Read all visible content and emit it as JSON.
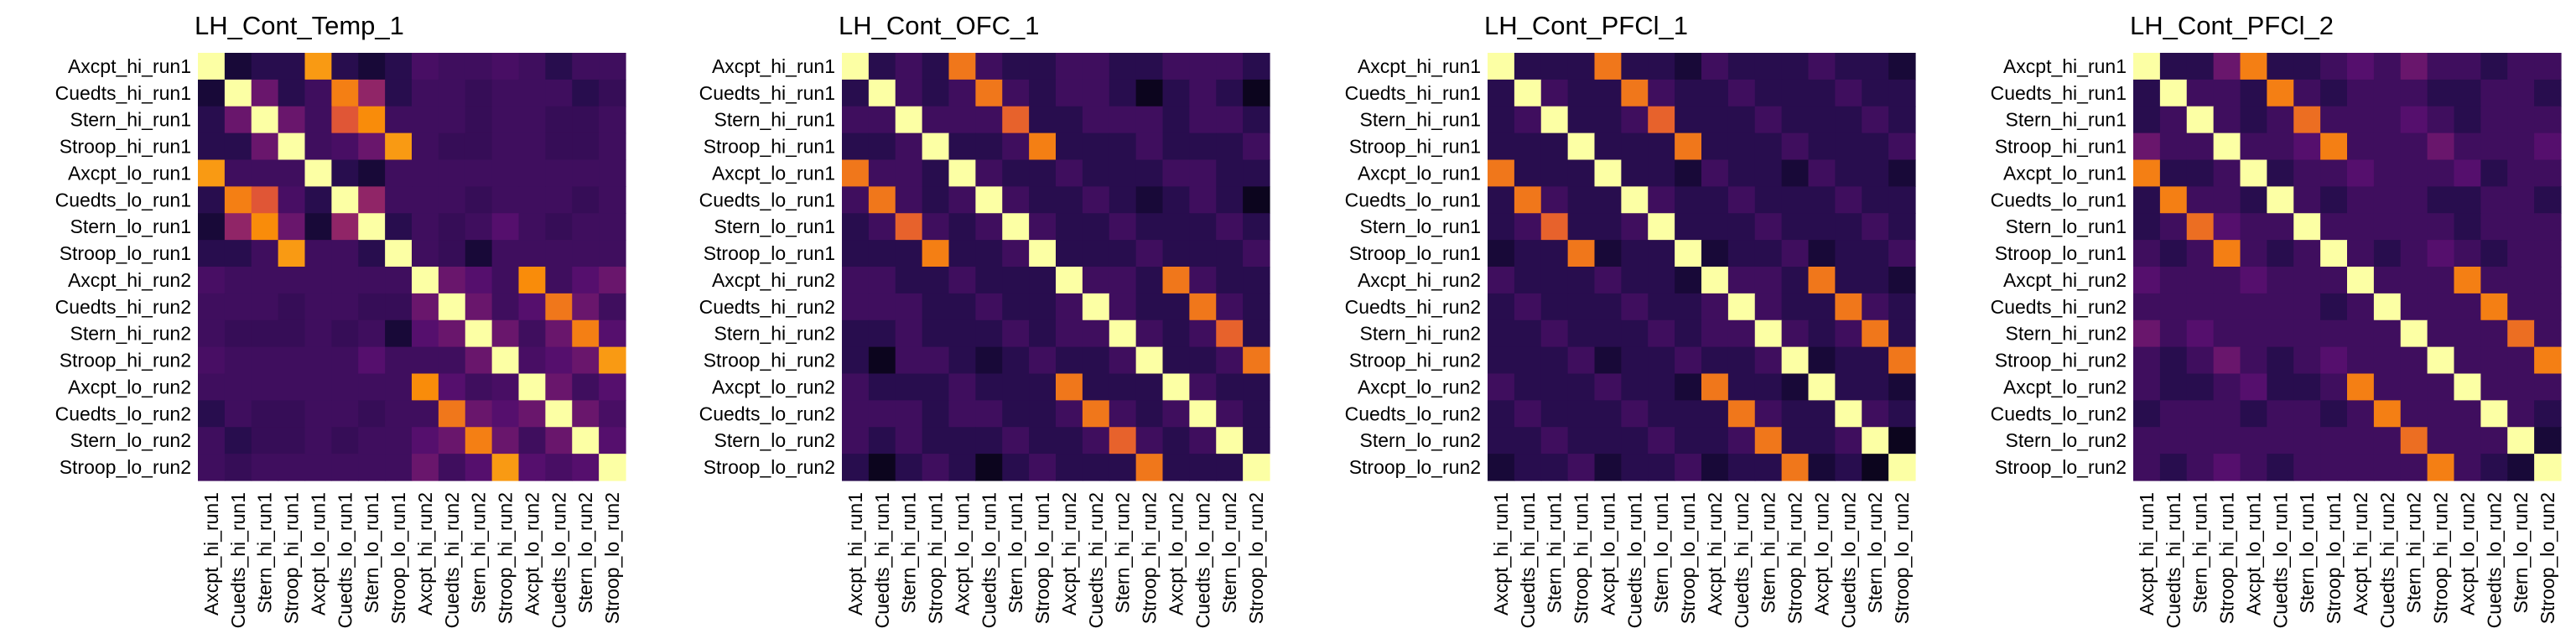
{
  "chart_data": [
    {
      "type": "heatmap",
      "title": "LH_Cont_Temp_1",
      "labels": [
        "Axcpt_hi_run1",
        "Cuedts_hi_run1",
        "Stern_hi_run1",
        "Stroop_hi_run1",
        "Axcpt_lo_run1",
        "Cuedts_lo_run1",
        "Stern_lo_run1",
        "Stroop_lo_run1",
        "Axcpt_hi_run2",
        "Cuedts_hi_run2",
        "Stern_hi_run2",
        "Stroop_hi_run2",
        "Axcpt_lo_run2",
        "Cuedts_lo_run2",
        "Stern_lo_run2",
        "Stroop_lo_run2"
      ],
      "value_range": [
        0,
        1
      ],
      "colormap": "inferno",
      "values": [
        [
          1.0,
          0.1,
          0.15,
          0.15,
          0.78,
          0.15,
          0.1,
          0.15,
          0.22,
          0.2,
          0.2,
          0.22,
          0.2,
          0.15,
          0.2,
          0.2
        ],
        [
          0.1,
          1.0,
          0.3,
          0.15,
          0.2,
          0.72,
          0.4,
          0.15,
          0.2,
          0.2,
          0.18,
          0.2,
          0.2,
          0.2,
          0.15,
          0.18
        ],
        [
          0.15,
          0.3,
          1.0,
          0.3,
          0.2,
          0.62,
          0.75,
          0.2,
          0.2,
          0.2,
          0.18,
          0.2,
          0.2,
          0.18,
          0.18,
          0.2
        ],
        [
          0.15,
          0.15,
          0.3,
          1.0,
          0.2,
          0.22,
          0.3,
          0.78,
          0.2,
          0.18,
          0.18,
          0.2,
          0.2,
          0.18,
          0.18,
          0.2
        ],
        [
          0.78,
          0.2,
          0.2,
          0.2,
          1.0,
          0.15,
          0.1,
          0.2,
          0.2,
          0.2,
          0.2,
          0.2,
          0.2,
          0.2,
          0.2,
          0.2
        ],
        [
          0.15,
          0.72,
          0.62,
          0.22,
          0.15,
          1.0,
          0.4,
          0.2,
          0.2,
          0.2,
          0.18,
          0.2,
          0.2,
          0.2,
          0.18,
          0.2
        ],
        [
          0.1,
          0.4,
          0.75,
          0.3,
          0.1,
          0.4,
          1.0,
          0.15,
          0.2,
          0.18,
          0.2,
          0.25,
          0.2,
          0.18,
          0.2,
          0.2
        ],
        [
          0.15,
          0.15,
          0.2,
          0.78,
          0.2,
          0.2,
          0.15,
          1.0,
          0.2,
          0.18,
          0.1,
          0.2,
          0.2,
          0.2,
          0.2,
          0.2
        ],
        [
          0.22,
          0.2,
          0.2,
          0.2,
          0.2,
          0.2,
          0.2,
          0.2,
          1.0,
          0.3,
          0.25,
          0.2,
          0.75,
          0.2,
          0.25,
          0.3
        ],
        [
          0.2,
          0.2,
          0.2,
          0.18,
          0.2,
          0.2,
          0.18,
          0.18,
          0.3,
          1.0,
          0.3,
          0.2,
          0.25,
          0.7,
          0.3,
          0.2
        ],
        [
          0.2,
          0.18,
          0.18,
          0.18,
          0.2,
          0.18,
          0.2,
          0.1,
          0.25,
          0.3,
          1.0,
          0.3,
          0.2,
          0.3,
          0.72,
          0.25
        ],
        [
          0.22,
          0.2,
          0.2,
          0.2,
          0.2,
          0.2,
          0.25,
          0.2,
          0.2,
          0.2,
          0.3,
          1.0,
          0.22,
          0.25,
          0.3,
          0.78
        ],
        [
          0.2,
          0.2,
          0.2,
          0.2,
          0.2,
          0.2,
          0.2,
          0.2,
          0.75,
          0.25,
          0.2,
          0.22,
          1.0,
          0.3,
          0.2,
          0.25
        ],
        [
          0.15,
          0.2,
          0.18,
          0.18,
          0.2,
          0.2,
          0.18,
          0.2,
          0.2,
          0.7,
          0.3,
          0.25,
          0.3,
          1.0,
          0.3,
          0.22
        ],
        [
          0.2,
          0.15,
          0.18,
          0.18,
          0.2,
          0.18,
          0.2,
          0.2,
          0.25,
          0.3,
          0.72,
          0.3,
          0.2,
          0.3,
          1.0,
          0.25
        ],
        [
          0.2,
          0.18,
          0.2,
          0.2,
          0.2,
          0.2,
          0.2,
          0.2,
          0.3,
          0.2,
          0.25,
          0.78,
          0.25,
          0.22,
          0.25,
          1.0
        ]
      ]
    },
    {
      "type": "heatmap",
      "title": "LH_Cont_OFC_1",
      "labels": [
        "Axcpt_hi_run1",
        "Cuedts_hi_run1",
        "Stern_hi_run1",
        "Stroop_hi_run1",
        "Axcpt_lo_run1",
        "Cuedts_lo_run1",
        "Stern_lo_run1",
        "Stroop_lo_run1",
        "Axcpt_hi_run2",
        "Cuedts_hi_run2",
        "Stern_hi_run2",
        "Stroop_hi_run2",
        "Axcpt_lo_run2",
        "Cuedts_lo_run2",
        "Stern_lo_run2",
        "Stroop_lo_run2"
      ],
      "value_range": [
        0,
        1
      ],
      "colormap": "inferno",
      "values": [
        [
          1.0,
          0.15,
          0.2,
          0.15,
          0.7,
          0.2,
          0.15,
          0.15,
          0.2,
          0.2,
          0.15,
          0.15,
          0.2,
          0.2,
          0.2,
          0.15
        ],
        [
          0.15,
          1.0,
          0.2,
          0.15,
          0.2,
          0.7,
          0.2,
          0.15,
          0.2,
          0.2,
          0.15,
          0.05,
          0.15,
          0.2,
          0.15,
          0.05
        ],
        [
          0.2,
          0.2,
          1.0,
          0.2,
          0.2,
          0.2,
          0.65,
          0.15,
          0.15,
          0.2,
          0.2,
          0.2,
          0.15,
          0.2,
          0.2,
          0.15
        ],
        [
          0.15,
          0.15,
          0.2,
          1.0,
          0.15,
          0.15,
          0.2,
          0.72,
          0.15,
          0.15,
          0.15,
          0.2,
          0.15,
          0.15,
          0.15,
          0.2
        ],
        [
          0.7,
          0.2,
          0.2,
          0.15,
          1.0,
          0.2,
          0.15,
          0.15,
          0.2,
          0.15,
          0.15,
          0.15,
          0.2,
          0.2,
          0.15,
          0.15
        ],
        [
          0.2,
          0.7,
          0.2,
          0.15,
          0.2,
          1.0,
          0.2,
          0.15,
          0.15,
          0.2,
          0.15,
          0.1,
          0.15,
          0.2,
          0.15,
          0.05
        ],
        [
          0.15,
          0.2,
          0.65,
          0.2,
          0.15,
          0.2,
          1.0,
          0.2,
          0.15,
          0.15,
          0.2,
          0.15,
          0.15,
          0.15,
          0.2,
          0.15
        ],
        [
          0.15,
          0.15,
          0.15,
          0.72,
          0.15,
          0.15,
          0.2,
          1.0,
          0.15,
          0.15,
          0.15,
          0.2,
          0.15,
          0.15,
          0.15,
          0.2
        ],
        [
          0.2,
          0.2,
          0.15,
          0.15,
          0.2,
          0.15,
          0.15,
          0.15,
          1.0,
          0.2,
          0.2,
          0.15,
          0.7,
          0.2,
          0.15,
          0.15
        ],
        [
          0.2,
          0.2,
          0.2,
          0.15,
          0.15,
          0.2,
          0.15,
          0.15,
          0.2,
          1.0,
          0.2,
          0.15,
          0.15,
          0.7,
          0.2,
          0.15
        ],
        [
          0.15,
          0.15,
          0.2,
          0.15,
          0.15,
          0.15,
          0.2,
          0.15,
          0.2,
          0.2,
          1.0,
          0.2,
          0.15,
          0.2,
          0.65,
          0.15
        ],
        [
          0.15,
          0.05,
          0.2,
          0.2,
          0.15,
          0.1,
          0.15,
          0.2,
          0.15,
          0.15,
          0.2,
          1.0,
          0.15,
          0.15,
          0.2,
          0.7
        ],
        [
          0.2,
          0.15,
          0.15,
          0.15,
          0.2,
          0.15,
          0.15,
          0.15,
          0.7,
          0.15,
          0.15,
          0.15,
          1.0,
          0.2,
          0.15,
          0.15
        ],
        [
          0.2,
          0.2,
          0.2,
          0.15,
          0.2,
          0.2,
          0.15,
          0.15,
          0.2,
          0.7,
          0.2,
          0.15,
          0.2,
          1.0,
          0.2,
          0.15
        ],
        [
          0.2,
          0.15,
          0.2,
          0.15,
          0.15,
          0.15,
          0.2,
          0.15,
          0.15,
          0.2,
          0.65,
          0.2,
          0.15,
          0.2,
          1.0,
          0.15
        ],
        [
          0.15,
          0.05,
          0.15,
          0.2,
          0.15,
          0.05,
          0.15,
          0.2,
          0.15,
          0.15,
          0.15,
          0.7,
          0.15,
          0.15,
          0.15,
          1.0
        ]
      ]
    },
    {
      "type": "heatmap",
      "title": "LH_Cont_PFCl_1",
      "labels": [
        "Axcpt_hi_run1",
        "Cuedts_hi_run1",
        "Stern_hi_run1",
        "Stroop_hi_run1",
        "Axcpt_lo_run1",
        "Cuedts_lo_run1",
        "Stern_lo_run1",
        "Stroop_lo_run1",
        "Axcpt_hi_run2",
        "Cuedts_hi_run2",
        "Stern_hi_run2",
        "Stroop_hi_run2",
        "Axcpt_lo_run2",
        "Cuedts_lo_run2",
        "Stern_lo_run2",
        "Stroop_lo_run2"
      ],
      "value_range": [
        0,
        1
      ],
      "colormap": "inferno",
      "values": [
        [
          1.0,
          0.15,
          0.15,
          0.15,
          0.7,
          0.15,
          0.15,
          0.1,
          0.2,
          0.15,
          0.15,
          0.15,
          0.2,
          0.15,
          0.15,
          0.1
        ],
        [
          0.15,
          1.0,
          0.2,
          0.15,
          0.15,
          0.7,
          0.2,
          0.15,
          0.15,
          0.2,
          0.15,
          0.15,
          0.15,
          0.2,
          0.15,
          0.15
        ],
        [
          0.15,
          0.2,
          1.0,
          0.15,
          0.15,
          0.2,
          0.65,
          0.15,
          0.15,
          0.15,
          0.2,
          0.15,
          0.15,
          0.15,
          0.2,
          0.15
        ],
        [
          0.15,
          0.15,
          0.15,
          1.0,
          0.15,
          0.15,
          0.15,
          0.7,
          0.15,
          0.15,
          0.15,
          0.2,
          0.15,
          0.15,
          0.15,
          0.2
        ],
        [
          0.7,
          0.15,
          0.15,
          0.15,
          1.0,
          0.15,
          0.15,
          0.1,
          0.2,
          0.15,
          0.15,
          0.1,
          0.2,
          0.15,
          0.15,
          0.1
        ],
        [
          0.15,
          0.7,
          0.2,
          0.15,
          0.15,
          1.0,
          0.2,
          0.15,
          0.15,
          0.2,
          0.15,
          0.15,
          0.15,
          0.2,
          0.15,
          0.15
        ],
        [
          0.15,
          0.2,
          0.65,
          0.15,
          0.15,
          0.2,
          1.0,
          0.15,
          0.15,
          0.15,
          0.2,
          0.15,
          0.15,
          0.15,
          0.2,
          0.15
        ],
        [
          0.1,
          0.15,
          0.15,
          0.7,
          0.1,
          0.15,
          0.15,
          1.0,
          0.1,
          0.15,
          0.15,
          0.2,
          0.1,
          0.15,
          0.15,
          0.2
        ],
        [
          0.2,
          0.15,
          0.15,
          0.15,
          0.2,
          0.15,
          0.15,
          0.1,
          1.0,
          0.2,
          0.2,
          0.15,
          0.7,
          0.15,
          0.15,
          0.1
        ],
        [
          0.15,
          0.2,
          0.15,
          0.15,
          0.15,
          0.2,
          0.15,
          0.15,
          0.2,
          1.0,
          0.2,
          0.15,
          0.15,
          0.7,
          0.2,
          0.15
        ],
        [
          0.15,
          0.15,
          0.2,
          0.15,
          0.15,
          0.15,
          0.2,
          0.15,
          0.2,
          0.2,
          1.0,
          0.2,
          0.15,
          0.2,
          0.7,
          0.15
        ],
        [
          0.15,
          0.15,
          0.15,
          0.2,
          0.1,
          0.15,
          0.15,
          0.2,
          0.15,
          0.15,
          0.2,
          1.0,
          0.1,
          0.15,
          0.15,
          0.7
        ],
        [
          0.2,
          0.15,
          0.15,
          0.15,
          0.2,
          0.15,
          0.15,
          0.1,
          0.7,
          0.15,
          0.15,
          0.1,
          1.0,
          0.15,
          0.15,
          0.1
        ],
        [
          0.15,
          0.2,
          0.15,
          0.15,
          0.15,
          0.2,
          0.15,
          0.15,
          0.15,
          0.7,
          0.2,
          0.15,
          0.15,
          1.0,
          0.2,
          0.15
        ],
        [
          0.15,
          0.15,
          0.2,
          0.15,
          0.15,
          0.15,
          0.2,
          0.15,
          0.15,
          0.2,
          0.7,
          0.15,
          0.15,
          0.2,
          1.0,
          0.05
        ],
        [
          0.1,
          0.15,
          0.15,
          0.2,
          0.1,
          0.15,
          0.15,
          0.2,
          0.1,
          0.15,
          0.15,
          0.7,
          0.1,
          0.15,
          0.05,
          1.0
        ]
      ]
    },
    {
      "type": "heatmap",
      "title": "LH_Cont_PFCl_2",
      "labels": [
        "Axcpt_hi_run1",
        "Cuedts_hi_run1",
        "Stern_hi_run1",
        "Stroop_hi_run1",
        "Axcpt_lo_run1",
        "Cuedts_lo_run1",
        "Stern_lo_run1",
        "Stroop_lo_run1",
        "Axcpt_hi_run2",
        "Cuedts_hi_run2",
        "Stern_hi_run2",
        "Stroop_hi_run2",
        "Axcpt_lo_run2",
        "Cuedts_lo_run2",
        "Stern_lo_run2",
        "Stroop_lo_run2"
      ],
      "value_range": [
        0,
        1
      ],
      "colormap": "inferno",
      "values": [
        [
          1.0,
          0.15,
          0.15,
          0.3,
          0.72,
          0.15,
          0.15,
          0.2,
          0.25,
          0.2,
          0.3,
          0.2,
          0.2,
          0.15,
          0.2,
          0.2
        ],
        [
          0.15,
          1.0,
          0.2,
          0.2,
          0.15,
          0.72,
          0.2,
          0.15,
          0.2,
          0.2,
          0.2,
          0.15,
          0.15,
          0.2,
          0.2,
          0.15
        ],
        [
          0.15,
          0.2,
          1.0,
          0.2,
          0.15,
          0.2,
          0.68,
          0.2,
          0.2,
          0.2,
          0.25,
          0.2,
          0.15,
          0.2,
          0.2,
          0.2
        ],
        [
          0.3,
          0.2,
          0.2,
          1.0,
          0.2,
          0.2,
          0.25,
          0.72,
          0.2,
          0.2,
          0.2,
          0.3,
          0.2,
          0.2,
          0.2,
          0.25
        ],
        [
          0.72,
          0.15,
          0.15,
          0.2,
          1.0,
          0.15,
          0.2,
          0.2,
          0.25,
          0.2,
          0.2,
          0.2,
          0.25,
          0.15,
          0.2,
          0.2
        ],
        [
          0.15,
          0.72,
          0.2,
          0.2,
          0.15,
          1.0,
          0.2,
          0.15,
          0.2,
          0.2,
          0.2,
          0.15,
          0.15,
          0.2,
          0.2,
          0.15
        ],
        [
          0.15,
          0.2,
          0.68,
          0.25,
          0.2,
          0.2,
          1.0,
          0.2,
          0.2,
          0.2,
          0.2,
          0.2,
          0.15,
          0.2,
          0.2,
          0.2
        ],
        [
          0.2,
          0.15,
          0.2,
          0.72,
          0.2,
          0.15,
          0.2,
          1.0,
          0.2,
          0.15,
          0.2,
          0.25,
          0.2,
          0.15,
          0.2,
          0.2
        ],
        [
          0.25,
          0.2,
          0.2,
          0.2,
          0.25,
          0.2,
          0.2,
          0.2,
          1.0,
          0.2,
          0.2,
          0.2,
          0.72,
          0.2,
          0.2,
          0.2
        ],
        [
          0.2,
          0.2,
          0.2,
          0.2,
          0.2,
          0.2,
          0.2,
          0.15,
          0.2,
          1.0,
          0.2,
          0.2,
          0.2,
          0.72,
          0.2,
          0.2
        ],
        [
          0.3,
          0.2,
          0.25,
          0.2,
          0.2,
          0.2,
          0.2,
          0.2,
          0.2,
          0.2,
          1.0,
          0.2,
          0.2,
          0.2,
          0.68,
          0.2
        ],
        [
          0.2,
          0.15,
          0.2,
          0.3,
          0.2,
          0.15,
          0.2,
          0.25,
          0.2,
          0.2,
          0.2,
          1.0,
          0.2,
          0.2,
          0.2,
          0.72
        ],
        [
          0.2,
          0.15,
          0.15,
          0.2,
          0.25,
          0.15,
          0.15,
          0.2,
          0.72,
          0.2,
          0.2,
          0.2,
          1.0,
          0.2,
          0.2,
          0.2
        ],
        [
          0.15,
          0.2,
          0.2,
          0.2,
          0.15,
          0.2,
          0.2,
          0.15,
          0.2,
          0.72,
          0.2,
          0.2,
          0.2,
          1.0,
          0.2,
          0.15
        ],
        [
          0.2,
          0.2,
          0.2,
          0.2,
          0.2,
          0.2,
          0.2,
          0.2,
          0.2,
          0.2,
          0.68,
          0.2,
          0.2,
          0.2,
          1.0,
          0.1
        ],
        [
          0.2,
          0.15,
          0.2,
          0.25,
          0.2,
          0.15,
          0.2,
          0.2,
          0.2,
          0.2,
          0.2,
          0.72,
          0.2,
          0.15,
          0.1,
          1.0
        ]
      ]
    }
  ]
}
